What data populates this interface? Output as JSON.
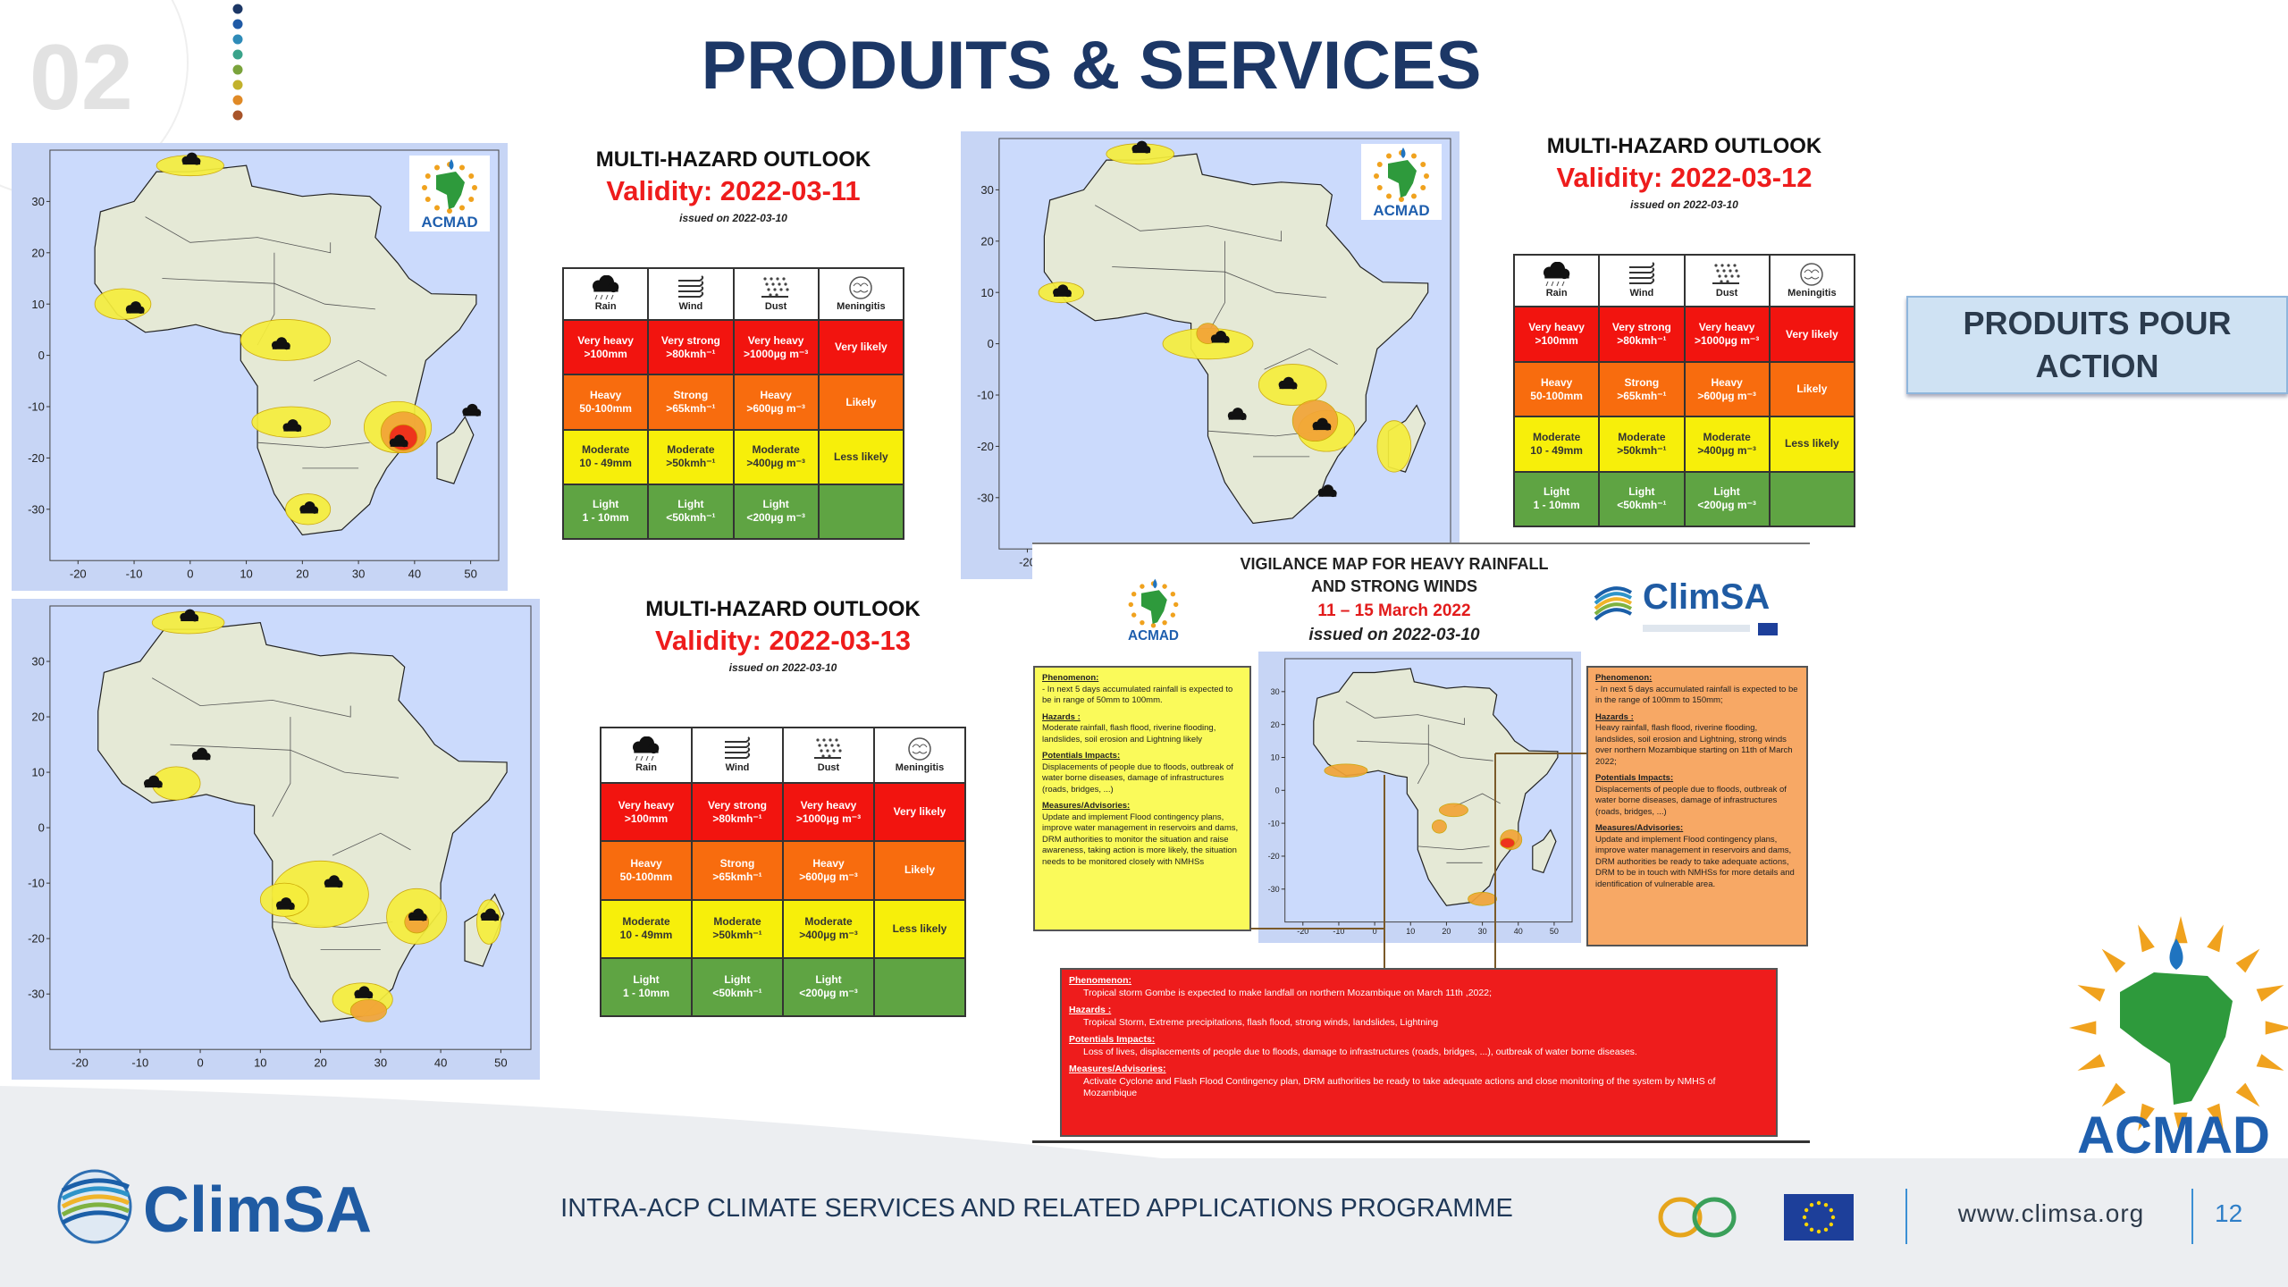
{
  "header": {
    "number": "02",
    "title": "PRODUITS & SERVICES"
  },
  "hazard_table": {
    "columns": [
      "Rain",
      "Wind",
      "Dust",
      "Meningitis"
    ],
    "rows": [
      [
        [
          "Very heavy",
          ">100mm"
        ],
        [
          "Very strong",
          ">80kmh⁻¹"
        ],
        [
          "Very heavy",
          ">1000µg m⁻³"
        ],
        [
          "Very likely"
        ]
      ],
      [
        [
          "Heavy",
          "50-100mm"
        ],
        [
          "Strong",
          ">65kmh⁻¹"
        ],
        [
          "Heavy",
          ">600µg m⁻³"
        ],
        [
          "Likely"
        ]
      ],
      [
        [
          "Moderate",
          "10 - 49mm"
        ],
        [
          "Moderate",
          ">50kmh⁻¹"
        ],
        [
          "Moderate",
          ">400µg m⁻³"
        ],
        [
          "Less likely"
        ]
      ],
      [
        [
          "Light",
          "1 - 10mm"
        ],
        [
          "Light",
          "<50kmh⁻¹"
        ],
        [
          "Light",
          "<200µg m⁻³"
        ]
      ]
    ]
  },
  "outlooks": [
    {
      "title": "MULTI-HAZARD OUTLOOK",
      "validity": "Validity: 2022-03-11",
      "issued": "issued on 2022-03-10",
      "map": {
        "lat_ticks": [
          30,
          20,
          10,
          0,
          -10,
          -20,
          -30
        ],
        "lon_ticks": [
          -20,
          -10,
          0,
          10,
          20,
          30,
          40,
          50
        ]
      }
    },
    {
      "title": "MULTI-HAZARD OUTLOOK",
      "validity": "Validity: 2022-03-12",
      "issued": "issued on 2022-03-10",
      "map": {
        "lat_ticks": [
          30,
          20,
          10,
          0,
          -10,
          -20,
          -30
        ],
        "lon_ticks": [
          -20
        ]
      }
    },
    {
      "title": "MULTI-HAZARD OUTLOOK",
      "validity": "Validity: 2022-03-13",
      "issued": "issued on 2022-03-10",
      "map": {
        "lat_ticks": [
          30,
          20,
          10,
          0,
          -10,
          -20,
          -30
        ],
        "lon_ticks": [
          -20,
          -10,
          0,
          10,
          20,
          30,
          40,
          50
        ]
      }
    }
  ],
  "action_button": "PRODUITS POUR ACTION",
  "vigilance": {
    "title": [
      "VIGILANCE MAP FOR HEAVY RAINFALL",
      "AND STRONG WINDS"
    ],
    "period": "11 – 15 March 2022",
    "issued": "issued on 2022-03-10",
    "map": {
      "lat_ticks": [
        30,
        20,
        10,
        0,
        -10,
        -20,
        -30
      ],
      "lon_ticks": [
        -20,
        -10,
        0,
        10,
        20,
        30,
        40,
        50
      ]
    },
    "boxes": {
      "yellow": [
        {
          "heading": "Phenomenon:",
          "text": "- In next 5 days accumulated rainfall is expected to be in range of 50mm to 100mm."
        },
        {
          "heading": "Hazards :",
          "text": "Moderate rainfall, flash flood, riverine flooding, landslides, soil erosion and Lightning likely"
        },
        {
          "heading": "Potentials Impacts:",
          "text": "Displacements of people due to floods, outbreak of water borne diseases, damage of infrastructures (roads, bridges, ...)"
        },
        {
          "heading": "Measures/Advisories:",
          "text": "Update and implement Flood contingency plans, improve water management in reservoirs and dams, DRM authorities to monitor the situation and raise awareness, taking action is more likely, the situation needs to be monitored closely with NMHSs"
        }
      ],
      "orange": [
        {
          "heading": "Phenomenon:",
          "text": "- In next 5 days accumulated rainfall is expected to be in the range of 100mm to 150mm;"
        },
        {
          "heading": "Hazards :",
          "text": "Heavy rainfall, flash flood, riverine flooding, landslides, soil erosion and Lightning, strong winds over northern Mozambique starting on 11th of March 2022;"
        },
        {
          "heading": "Potentials Impacts:",
          "text": "Displacements of people due to floods, outbreak of water borne diseases, damage of infrastructures (roads, bridges, ...)"
        },
        {
          "heading": "Measures/Advisories:",
          "text": "Update and implement Flood contingency plans, improve water management in reservoirs and dams, DRM authorities be ready to take adequate actions, DRM to be in touch with NMHSs for more details and identification of vulnerable area."
        }
      ],
      "red": [
        {
          "heading": "Phenomenon:",
          "text": "Tropical storm Gombe is expected to make landfall on northern Mozambique on March 11th ,2022;"
        },
        {
          "heading": "Hazards :",
          "text": "Tropical Storm, Extreme precipitations, flash flood, strong winds, landslides, Lightning"
        },
        {
          "heading": "Potentials Impacts:",
          "text": "Loss of lives, displacements of people due to floods, damage to infrastructures (roads, bridges, ...), outbreak of water borne diseases."
        },
        {
          "heading": "Measures/Advisories:",
          "text": "Activate Cyclone and Flash Flood Contingency plan, DRM authorities be ready to take adequate actions and close monitoring of the system by NMHS of Mozambique"
        }
      ]
    }
  },
  "logos": {
    "acmad": "ACMAD",
    "climsa": "ClimSA"
  },
  "footer": {
    "programme": "INTRA-ACP CLIMATE SERVICES AND RELATED APPLICATIONS PROGRAMME",
    "website": "www.climsa.org",
    "page": "12"
  }
}
